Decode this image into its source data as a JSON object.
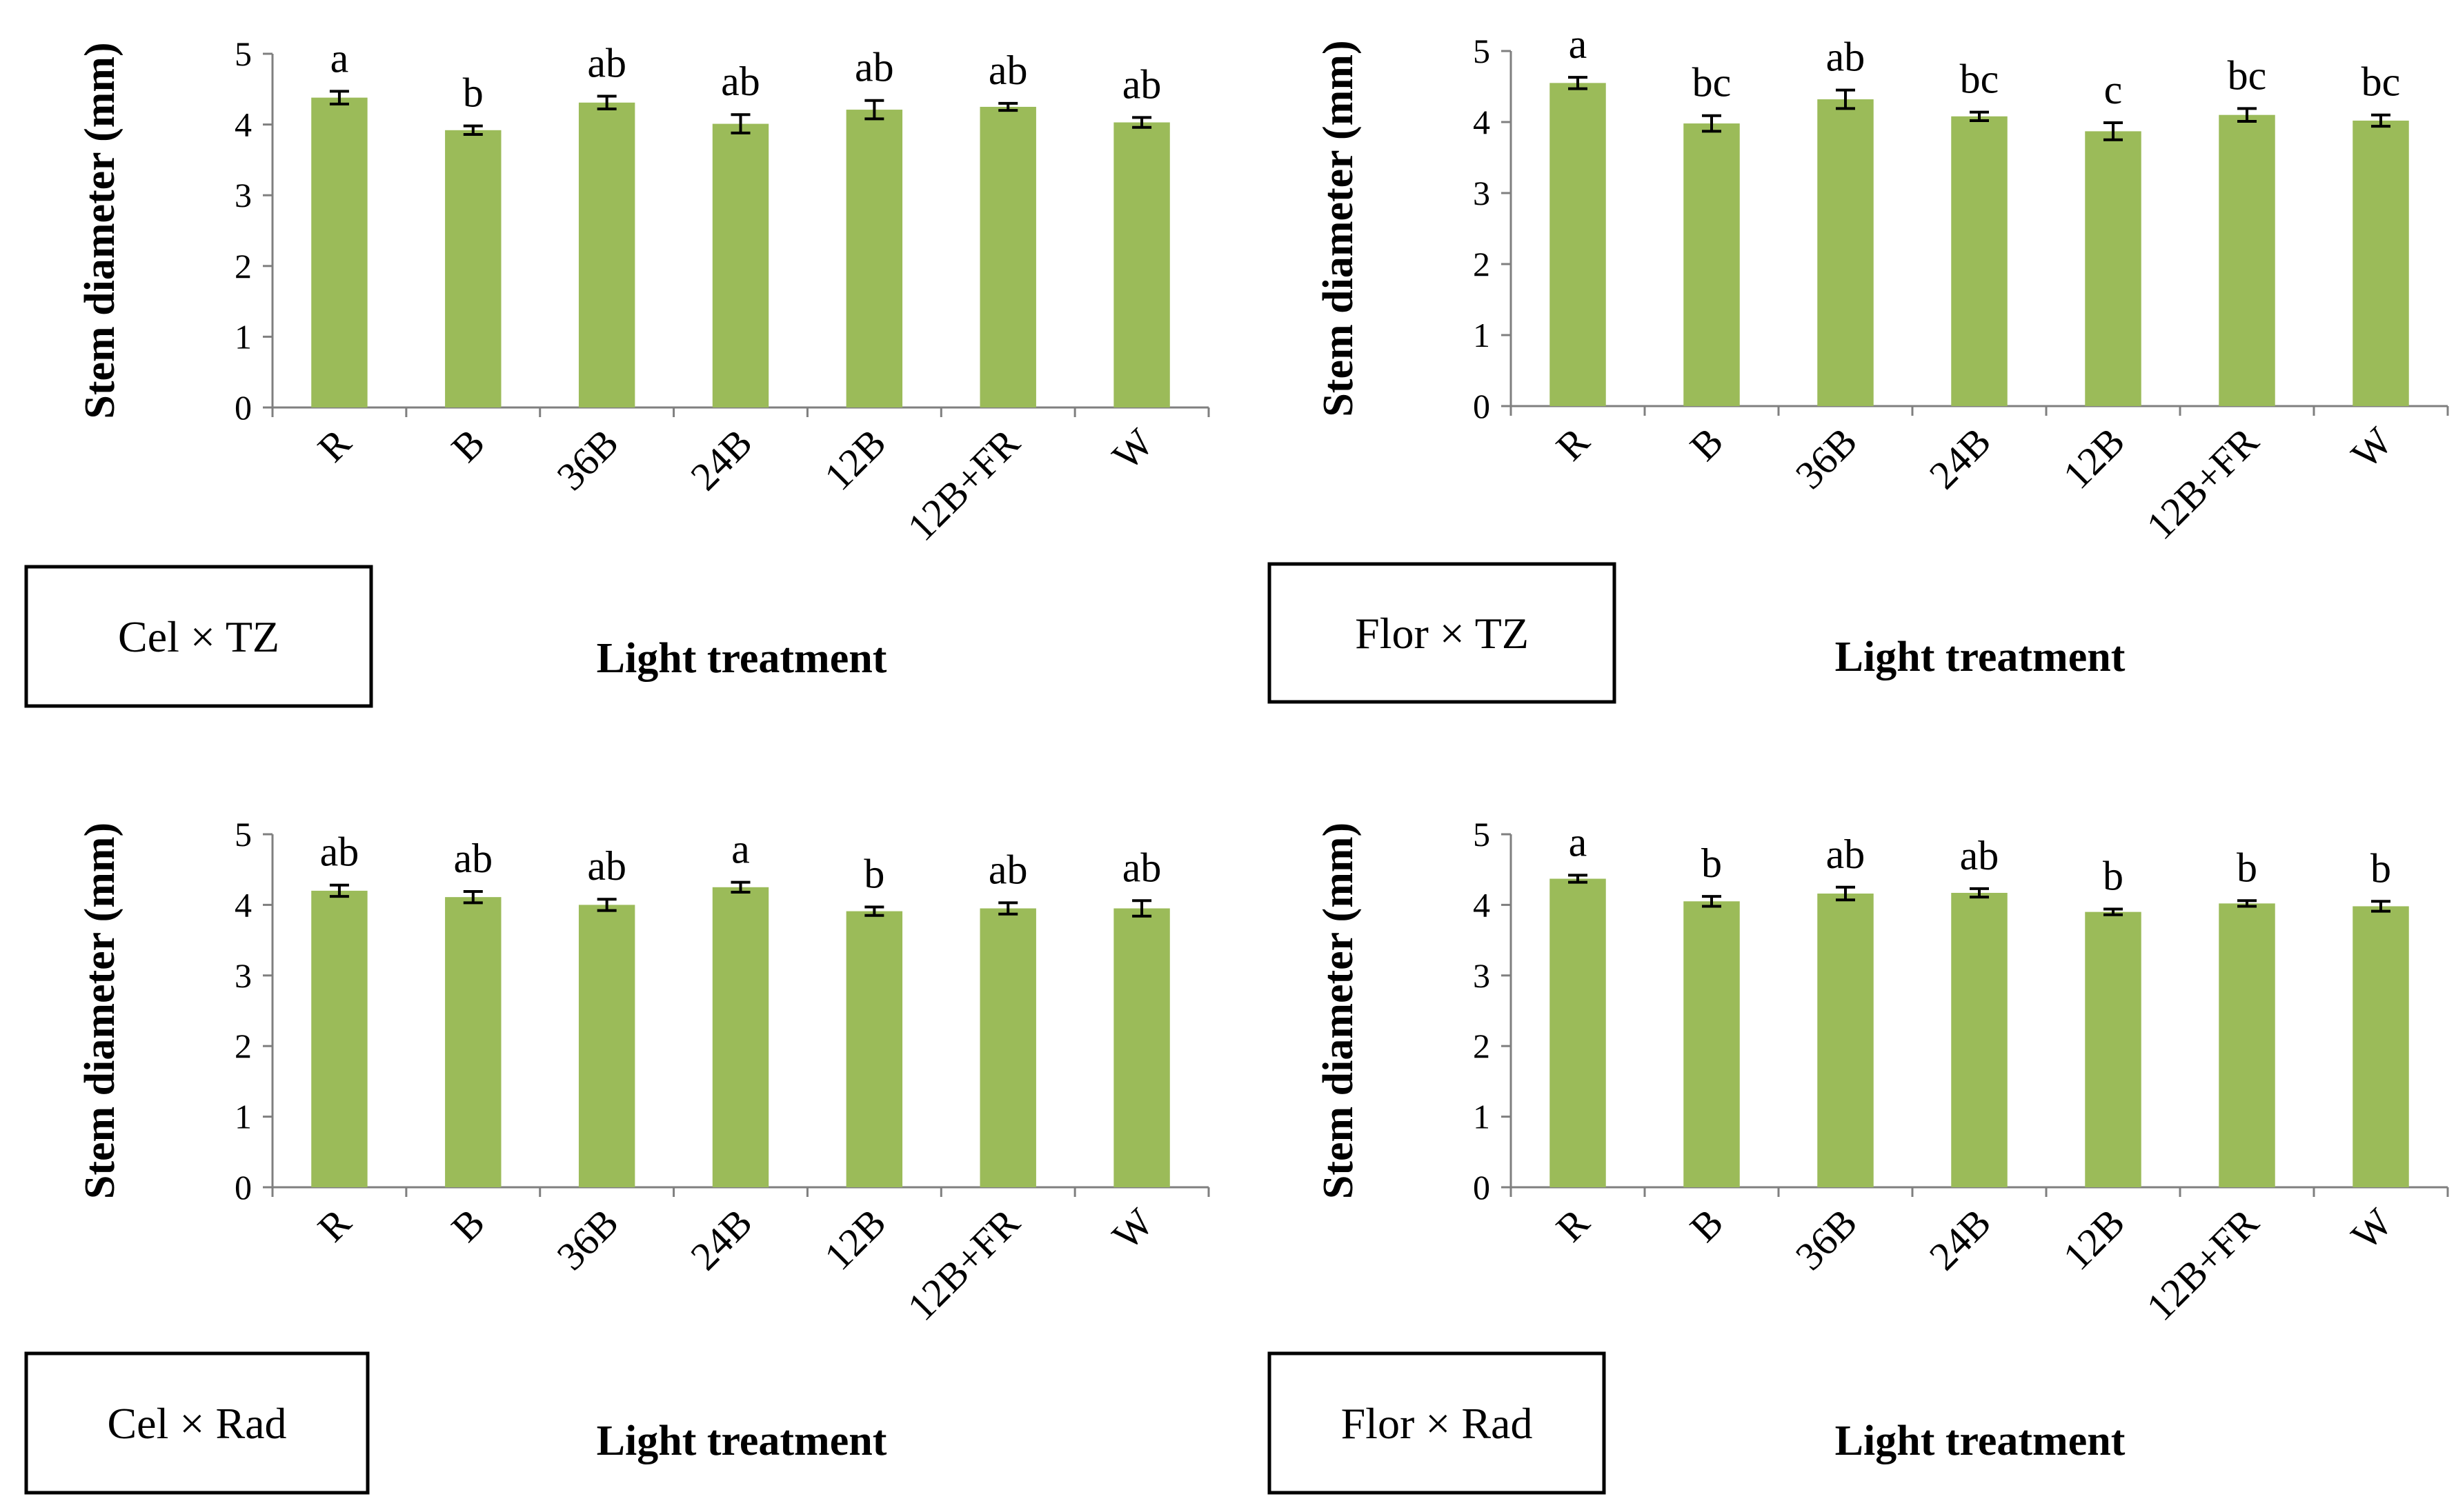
{
  "chart_data": [
    {
      "type": "bar",
      "panel_label": "Cel × TZ",
      "xlabel": "Light treatment",
      "ylabel": "Stem diameter (mm)",
      "ylim": [
        0,
        5
      ],
      "yticks": [
        0,
        1,
        2,
        3,
        4,
        5
      ],
      "grid": false,
      "bar_color": "#9bbb59",
      "categories": [
        "R",
        "B",
        "36B",
        "24B",
        "12B",
        "12B+FR",
        "W"
      ],
      "values": [
        4.38,
        3.92,
        4.31,
        4.01,
        4.21,
        4.25,
        4.03
      ],
      "errors": [
        0.09,
        0.06,
        0.09,
        0.13,
        0.13,
        0.05,
        0.07
      ],
      "significance": [
        "a",
        "b",
        "ab",
        "ab",
        "ab",
        "ab",
        "ab"
      ]
    },
    {
      "type": "bar",
      "panel_label": "Flor × TZ",
      "xlabel": "Light treatment",
      "ylabel": "Stem diameter (mm)",
      "ylim": [
        0,
        5
      ],
      "yticks": [
        0,
        1,
        2,
        3,
        4,
        5
      ],
      "grid": false,
      "bar_color": "#9bbb59",
      "categories": [
        "R",
        "B",
        "36B",
        "24B",
        "12B",
        "12B+FR",
        "W"
      ],
      "values": [
        4.55,
        3.98,
        4.32,
        4.08,
        3.87,
        4.1,
        4.02
      ],
      "errors": [
        0.08,
        0.11,
        0.13,
        0.06,
        0.12,
        0.09,
        0.08
      ],
      "significance": [
        "a",
        "bc",
        "ab",
        "bc",
        "c",
        "bc",
        "bc"
      ]
    },
    {
      "type": "bar",
      "panel_label": "Cel × Rad",
      "xlabel": "Light treatment",
      "ylabel": "Stem diameter (mm)",
      "ylim": [
        0,
        5
      ],
      "yticks": [
        0,
        1,
        2,
        3,
        4,
        5
      ],
      "grid": false,
      "bar_color": "#9bbb59",
      "categories": [
        "R",
        "B",
        "36B",
        "24B",
        "12B",
        "12B+FR",
        "W"
      ],
      "values": [
        4.2,
        4.11,
        4.0,
        4.25,
        3.91,
        3.95,
        3.95
      ],
      "errors": [
        0.08,
        0.08,
        0.08,
        0.07,
        0.06,
        0.08,
        0.11
      ],
      "significance": [
        "ab",
        "ab",
        "ab",
        "a",
        "b",
        "ab",
        "ab"
      ]
    },
    {
      "type": "bar",
      "panel_label": "Flor × Rad",
      "xlabel": "Light treatment",
      "ylabel": "Stem diameter (mm)",
      "ylim": [
        0,
        5
      ],
      "yticks": [
        0,
        1,
        2,
        3,
        4,
        5
      ],
      "grid": false,
      "bar_color": "#9bbb59",
      "categories": [
        "R",
        "B",
        "36B",
        "24B",
        "12B",
        "12B+FR",
        "W"
      ],
      "values": [
        4.37,
        4.05,
        4.16,
        4.17,
        3.9,
        4.02,
        3.98
      ],
      "errors": [
        0.05,
        0.07,
        0.09,
        0.06,
        0.04,
        0.04,
        0.07
      ],
      "significance": [
        "a",
        "b",
        "ab",
        "ab",
        "b",
        "b",
        "b"
      ]
    }
  ]
}
